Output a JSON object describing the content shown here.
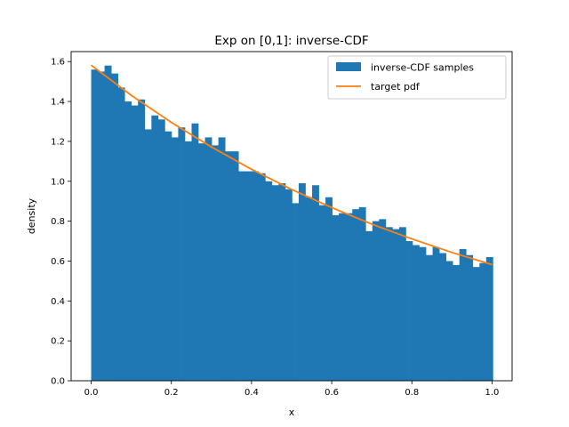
{
  "chart_data": {
    "type": "bar",
    "title": "Exp on [0,1]: inverse-CDF",
    "xlabel": "x",
    "ylabel": "density",
    "xlim": [
      -0.05,
      1.05
    ],
    "ylim": [
      0.0,
      1.65
    ],
    "xticks": [
      "0.0",
      "0.2",
      "0.4",
      "0.6",
      "0.8",
      "1.0"
    ],
    "yticks": [
      "0.0",
      "0.2",
      "0.4",
      "0.6",
      "0.8",
      "1.0",
      "1.2",
      "1.4",
      "1.6"
    ],
    "grid": false,
    "legend_position": "top-right",
    "histogram": {
      "name": "inverse-CDF samples",
      "color": "#1f77b4",
      "bin_start": 0.0,
      "bin_width": 0.0167,
      "values": [
        1.56,
        1.55,
        1.58,
        1.54,
        1.47,
        1.4,
        1.38,
        1.41,
        1.26,
        1.33,
        1.31,
        1.25,
        1.22,
        1.27,
        1.2,
        1.29,
        1.19,
        1.22,
        1.18,
        1.22,
        1.15,
        1.15,
        1.05,
        1.05,
        1.05,
        1.04,
        1.0,
        0.98,
        0.99,
        0.96,
        0.89,
        0.99,
        0.92,
        0.98,
        0.88,
        0.92,
        0.83,
        0.84,
        0.84,
        0.86,
        0.87,
        0.75,
        0.8,
        0.81,
        0.77,
        0.76,
        0.77,
        0.7,
        0.68,
        0.67,
        0.63,
        0.67,
        0.64,
        0.6,
        0.58,
        0.66,
        0.63,
        0.57,
        0.59,
        0.62
      ]
    },
    "curve": {
      "name": "target pdf",
      "color": "#ff7f0e",
      "x": [
        0.0,
        0.1,
        0.2,
        0.3,
        0.4,
        0.5,
        0.6,
        0.7,
        0.8,
        0.9,
        1.0
      ],
      "y": [
        1.582,
        1.431,
        1.295,
        1.172,
        1.06,
        0.959,
        0.868,
        0.785,
        0.711,
        0.643,
        0.582
      ]
    }
  }
}
